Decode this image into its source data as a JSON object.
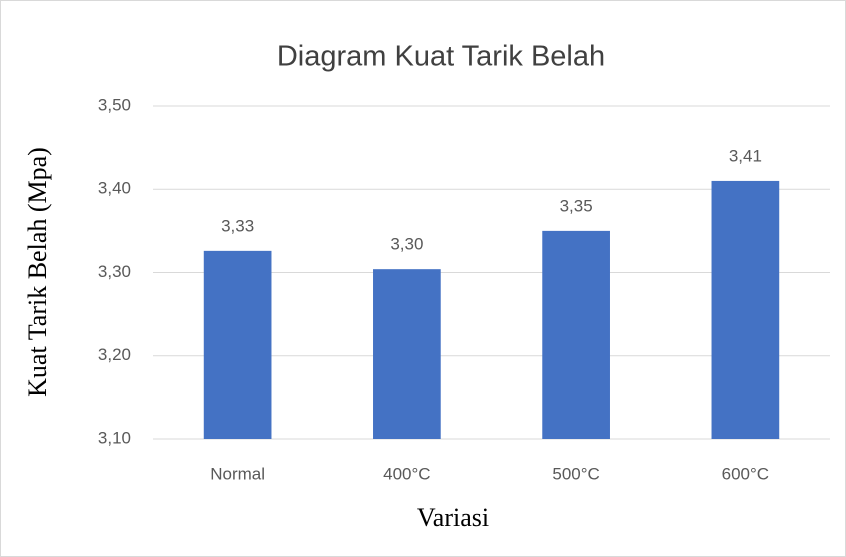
{
  "chart_data": {
    "type": "bar",
    "title": "Diagram Kuat Tarik Belah",
    "x_label": "Variasi",
    "y_label": "Kuat Tarik  Belah  (Mpa)",
    "categories": [
      "Normal",
      "400°C",
      "500°C",
      "600°C"
    ],
    "values": [
      3.326,
      3.304,
      3.35,
      3.41
    ],
    "value_labels": [
      "3,33",
      "3,30",
      "3,35",
      "3,41"
    ],
    "color": "#4472c4",
    "ylim": [
      3.1,
      3.5
    ],
    "yticks": [
      {
        "value": 3.1,
        "label": "3,10"
      },
      {
        "value": 3.2,
        "label": "3,20"
      },
      {
        "value": 3.3,
        "label": "3,30"
      },
      {
        "value": 3.4,
        "label": "3,40"
      },
      {
        "value": 3.5,
        "label": "3,50"
      }
    ],
    "grid": true
  }
}
